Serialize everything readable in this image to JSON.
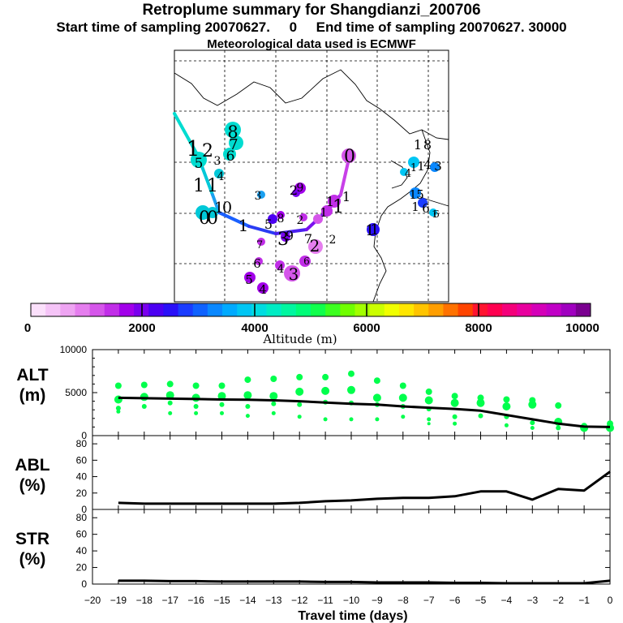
{
  "header": {
    "title": "Retroplume summary for Shangdianzi_200706",
    "subtitle": "Start time of sampling 20070627.     0     End time of sampling 20070627. 30000",
    "met_line": "Meteorological data used is ECMWF"
  },
  "colorbar": {
    "label": "Altitude (m)",
    "ticks": [
      "0",
      "2000",
      "4000",
      "6000",
      "8000",
      "10000"
    ],
    "colors": [
      "#fbe0fb",
      "#f5c4f7",
      "#eea4f2",
      "#e57eee",
      "#d556ea",
      "#c12ee8",
      "#a200ea",
      "#7a00ee",
      "#4c00f2",
      "#2a10f8",
      "#1a3cff",
      "#0f62ff",
      "#0a88ff",
      "#00aaff",
      "#00c6f4",
      "#00dce0",
      "#00ecc4",
      "#00f6a0",
      "#00fc78",
      "#10ff4c",
      "#3cff20",
      "#70ff00",
      "#a2ff00",
      "#ccff00",
      "#f0ff00",
      "#ffe600",
      "#ffc400",
      "#ff9e00",
      "#ff7200",
      "#ff4400",
      "#ff1430",
      "#ff0050",
      "#f4007a",
      "#e8009e",
      "#d400b8",
      "#c000c6",
      "#a000c0",
      "#7a0090"
    ]
  },
  "map": {
    "track_labels": [
      "0",
      "1",
      "2",
      "3",
      "4",
      "5",
      "6",
      "7",
      "8",
      "9",
      "10",
      "11",
      "12",
      "13",
      "14",
      "15",
      "16",
      "17",
      "18",
      "19"
    ]
  },
  "chart_data": [
    {
      "type": "line",
      "name": "ALT",
      "ylabel_line1": "ALT",
      "ylabel_line2": "(m)",
      "ylim": [
        0,
        10000
      ],
      "yticks": [
        "0",
        "5000",
        "10000"
      ],
      "x": [
        -19,
        -18,
        -17,
        -16,
        -15,
        -14,
        -13,
        -12,
        -11,
        -10,
        -9,
        -8,
        -7,
        -6,
        -5,
        -4,
        -3,
        -2,
        -1,
        0
      ],
      "values": [
        4400,
        4350,
        4300,
        4250,
        4200,
        4180,
        4100,
        4000,
        3850,
        3700,
        3600,
        3400,
        3250,
        3100,
        2900,
        2400,
        1900,
        1400,
        1050,
        1000
      ],
      "scatter": [
        {
          "x": -19,
          "y": [
            5800,
            4200,
            3200,
            2800
          ]
        },
        {
          "x": -18,
          "y": [
            5900,
            4500,
            3400
          ]
        },
        {
          "x": -17,
          "y": [
            6000,
            4700,
            3800,
            2600
          ]
        },
        {
          "x": -16,
          "y": [
            5800,
            4400,
            3400,
            2600
          ]
        },
        {
          "x": -15,
          "y": [
            5800,
            4600,
            3600,
            2600
          ]
        },
        {
          "x": -14,
          "y": [
            6500,
            4700,
            3400,
            2300
          ]
        },
        {
          "x": -13,
          "y": [
            6600,
            4600,
            3700,
            2600
          ]
        },
        {
          "x": -12,
          "y": [
            6800,
            5100,
            3600,
            2200
          ]
        },
        {
          "x": -11,
          "y": [
            6800,
            5200,
            3900,
            1900
          ]
        },
        {
          "x": -10,
          "y": [
            7200,
            5300,
            3800,
            1900
          ]
        },
        {
          "x": -9,
          "y": [
            6400,
            4400,
            3600,
            1900
          ]
        },
        {
          "x": -8,
          "y": [
            5800,
            4400,
            3400,
            2200
          ]
        },
        {
          "x": -7,
          "y": [
            5100,
            4100,
            3100,
            1900,
            1400
          ]
        },
        {
          "x": -6,
          "y": [
            4600,
            3800,
            2200,
            1400
          ]
        },
        {
          "x": -5,
          "y": [
            4400,
            3800,
            2300
          ]
        },
        {
          "x": -4,
          "y": [
            4200,
            3400,
            2200,
            1200
          ]
        },
        {
          "x": -3,
          "y": [
            4100,
            3600,
            1500,
            900
          ]
        },
        {
          "x": -2,
          "y": [
            3500,
            1600,
            900
          ]
        },
        {
          "x": -1,
          "y": [
            1100,
            900
          ]
        },
        {
          "x": 0,
          "y": [
            1400,
            900
          ]
        }
      ]
    },
    {
      "type": "line",
      "name": "ABL",
      "ylabel_line1": "ABL",
      "ylabel_line2": "(%)",
      "ylim": [
        0,
        90
      ],
      "yticks": [
        "0",
        "20",
        "40",
        "60",
        "80"
      ],
      "x": [
        -19,
        -18,
        -17,
        -16,
        -15,
        -14,
        -13,
        -12,
        -11,
        -10,
        -9,
        -8,
        -7,
        -6,
        -5,
        -4,
        -3,
        -2,
        -1,
        0
      ],
      "values": [
        8,
        7,
        7,
        7,
        7,
        7,
        7,
        8,
        10,
        11,
        13,
        14,
        14,
        16,
        22,
        22,
        12,
        25,
        23,
        46
      ]
    },
    {
      "type": "line",
      "name": "STR",
      "ylabel_line1": "STR",
      "ylabel_line2": "(%)",
      "ylim": [
        0,
        90
      ],
      "yticks": [
        "0",
        "20",
        "40",
        "60",
        "80"
      ],
      "x": [
        -19,
        -18,
        -17,
        -16,
        -15,
        -14,
        -13,
        -12,
        -11,
        -10,
        -9,
        -8,
        -7,
        -6,
        -5,
        -4,
        -3,
        -2,
        -1,
        0
      ],
      "values": [
        4,
        4,
        3.5,
        3.5,
        3,
        3,
        3,
        3,
        2.5,
        2.5,
        2,
        2,
        2,
        1.5,
        1.5,
        1,
        1,
        1,
        1,
        4
      ]
    }
  ],
  "xaxis": {
    "label": "Travel time (days)",
    "ticks": [
      "−20",
      "−19",
      "−18",
      "−17",
      "−16",
      "−15",
      "−14",
      "−13",
      "−12",
      "−11",
      "−10",
      "−9",
      "−8",
      "−7",
      "−6",
      "−5",
      "−4",
      "−3",
      "−2",
      "−1",
      "0"
    ]
  }
}
